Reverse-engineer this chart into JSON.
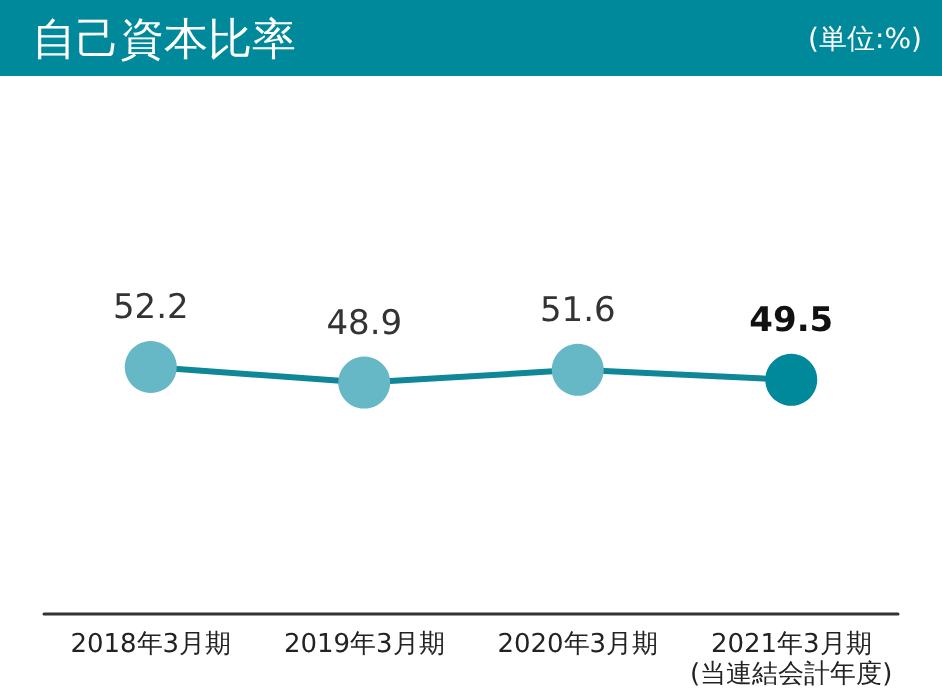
{
  "chart_data": {
    "type": "line",
    "title": "自己資本比率",
    "subtitle": "(単位:%)",
    "categories": [
      "2018年3月期",
      "2019年3月期",
      "2020年3月期",
      "2021年3月期\n(当連結会計年度)"
    ],
    "series": [
      {
        "color": "#0e8797",
        "colors": [
          "#67b8c6",
          "#67b8c6",
          "#67b8c6",
          "#00899a"
        ],
        "values": [
          52.2,
          48.9,
          51.6,
          49.5
        ]
      }
    ],
    "data_labels": true,
    "marker": "circle",
    "line_style": "solid",
    "grid": false
  }
}
